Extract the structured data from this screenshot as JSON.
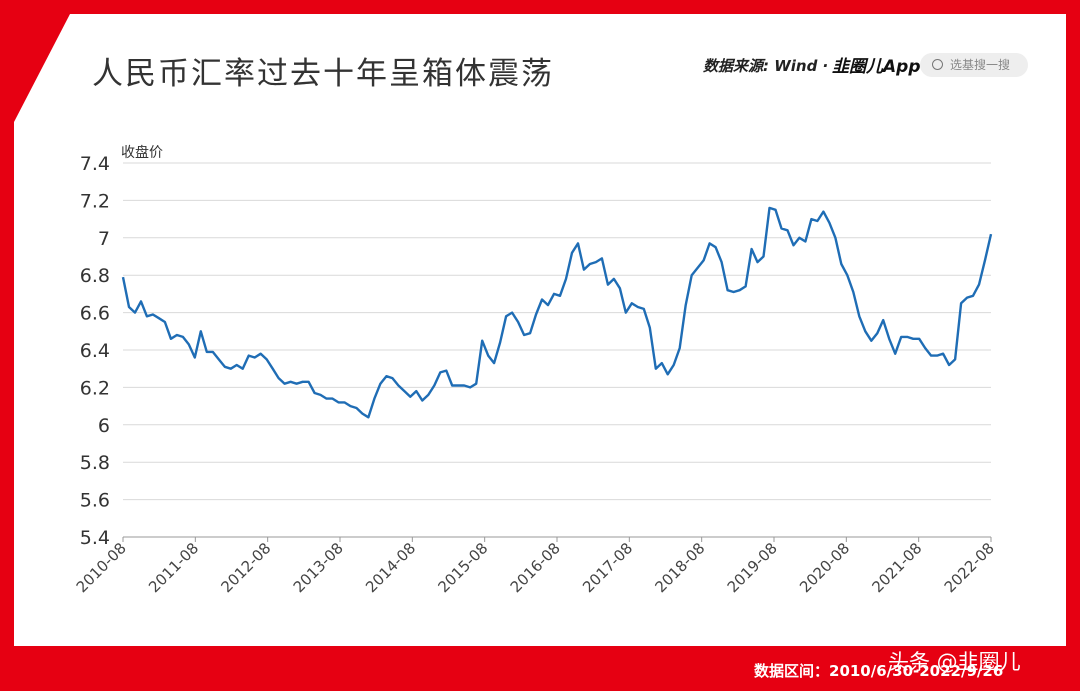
{
  "header": {
    "title": "人民币汇率过去十年呈箱体震荡",
    "source": "数据来源: Wind ·",
    "logo": "韭圈儿App",
    "search_placeholder": "选基搜一搜"
  },
  "footer": {
    "date_range": "数据区间：2010/6/30-2022/9/26",
    "watermark": "头条 @韭圈儿"
  },
  "colors": {
    "frame": "#e60012",
    "line": "#1f6db5",
    "grid": "#d9d9d9"
  },
  "chart_data": {
    "type": "line",
    "ylabel": "收盘价",
    "ylim": [
      5.4,
      7.4
    ],
    "yticks": [
      "5.4",
      "5.6",
      "5.8",
      "6",
      "6.2",
      "6.4",
      "6.6",
      "6.8",
      "7",
      "7.2",
      "7.4"
    ],
    "xticks": [
      "2010-08",
      "2011-08",
      "2012-08",
      "2013-08",
      "2014-08",
      "2015-08",
      "2016-08",
      "2017-08",
      "2018-08",
      "2019-08",
      "2020-08",
      "2021-08",
      "2022-08"
    ],
    "grid": true,
    "series": [
      {
        "values": [
          6.79,
          6.63,
          6.6,
          6.66,
          6.58,
          6.59,
          6.57,
          6.55,
          6.46,
          6.48,
          6.47,
          6.43,
          6.36,
          6.5,
          6.39,
          6.39,
          6.35,
          6.31,
          6.3,
          6.32,
          6.3,
          6.37,
          6.36,
          6.38,
          6.35,
          6.3,
          6.25,
          6.22,
          6.23,
          6.22,
          6.23,
          6.23,
          6.17,
          6.16,
          6.14,
          6.14,
          6.12,
          6.12,
          6.1,
          6.09,
          6.06,
          6.04,
          6.14,
          6.22,
          6.26,
          6.25,
          6.21,
          6.18,
          6.15,
          6.18,
          6.13,
          6.16,
          6.21,
          6.28,
          6.29,
          6.21,
          6.21,
          6.21,
          6.2,
          6.22,
          6.45,
          6.37,
          6.33,
          6.44,
          6.58,
          6.6,
          6.55,
          6.48,
          6.49,
          6.59,
          6.67,
          6.64,
          6.7,
          6.69,
          6.78,
          6.92,
          6.97,
          6.83,
          6.86,
          6.87,
          6.89,
          6.75,
          6.78,
          6.73,
          6.6,
          6.65,
          6.63,
          6.62,
          6.52,
          6.3,
          6.33,
          6.27,
          6.32,
          6.41,
          6.64,
          6.8,
          6.84,
          6.88,
          6.97,
          6.95,
          6.87,
          6.72,
          6.71,
          6.72,
          6.74,
          6.94,
          6.87,
          6.9,
          7.16,
          7.15,
          7.05,
          7.04,
          6.96,
          7.0,
          6.98,
          7.1,
          7.09,
          7.14,
          7.08,
          7.0,
          6.86,
          6.8,
          6.71,
          6.58,
          6.5,
          6.45,
          6.49,
          6.56,
          6.46,
          6.38,
          6.47,
          6.47,
          6.46,
          6.46,
          6.41,
          6.37,
          6.37,
          6.38,
          6.32,
          6.35,
          6.65,
          6.68,
          6.69,
          6.75,
          6.88,
          7.02
        ]
      }
    ]
  }
}
